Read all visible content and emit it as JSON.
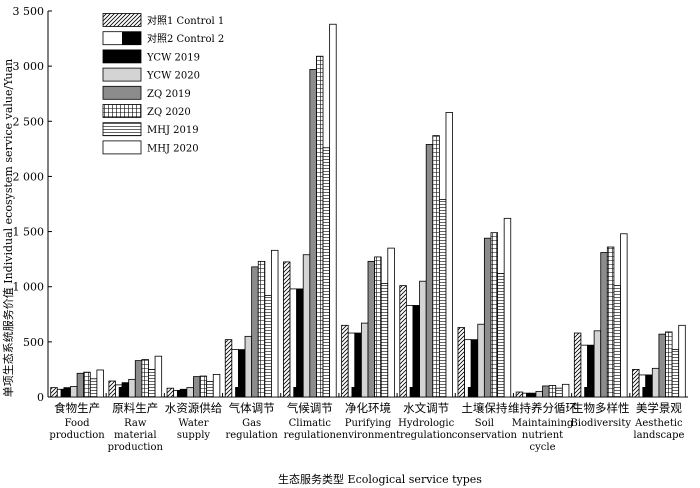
{
  "chart_data": {
    "type": "bar",
    "xlabel": "生态服务类型 Ecological service types",
    "ylabel": "单项生态系统服务价值 Individual ecosystem service value/Yuan",
    "ylim": [
      0,
      3500
    ],
    "yticks": [
      "0",
      "500",
      "1 000",
      "1 500",
      "2 000",
      "2 500",
      "3 000",
      "3 500"
    ],
    "ytick_values": [
      0,
      500,
      1000,
      1500,
      2000,
      2500,
      3000,
      3500
    ],
    "legend_position": "top-left",
    "categories": [
      {
        "zh": "食物生产",
        "en": [
          "Food",
          "production"
        ]
      },
      {
        "zh": "原料生产",
        "en": [
          "Raw",
          "material",
          "production"
        ]
      },
      {
        "zh": "水资源供给",
        "en": [
          "Water",
          "supply"
        ]
      },
      {
        "zh": "气体调节",
        "en": [
          "Gas",
          "regulation"
        ]
      },
      {
        "zh": "气候调节",
        "en": [
          "Climatic",
          "regulation"
        ]
      },
      {
        "zh": "净化环境",
        "en": [
          "Purifying",
          "environment"
        ]
      },
      {
        "zh": "水文调节",
        "en": [
          "Hydrologic",
          "regulation"
        ]
      },
      {
        "zh": "土壤保持",
        "en": [
          "Soil",
          "conservation"
        ]
      },
      {
        "zh": "维持养分循环",
        "en": [
          "Maintaining",
          "nutrient",
          "cycle"
        ]
      },
      {
        "zh": "生物多样性",
        "en": [
          "Biodiversity"
        ]
      },
      {
        "zh": "美学景观",
        "en": [
          "Aesthetic",
          "landscape"
        ]
      }
    ],
    "series": [
      {
        "name": "对照1 Control 1",
        "pattern": "diagonal",
        "values": [
          85,
          145,
          80,
          520,
          1225,
          650,
          1010,
          630,
          45,
          580,
          250
        ]
      },
      {
        "name": "对照2 Control 2",
        "pattern": "halfblack",
        "values": [
          70,
          110,
          60,
          430,
          980,
          580,
          830,
          520,
          35,
          470,
          200
        ]
      },
      {
        "name": "YCW 2019",
        "pattern": "black",
        "values": [
          85,
          130,
          70,
          430,
          980,
          580,
          830,
          520,
          35,
          470,
          200
        ]
      },
      {
        "name": "YCW 2020",
        "pattern": "lightgray",
        "values": [
          95,
          160,
          85,
          550,
          1290,
          670,
          1050,
          660,
          50,
          600,
          260
        ]
      },
      {
        "name": "ZQ 2019",
        "pattern": "darkgray",
        "values": [
          215,
          330,
          185,
          1180,
          2970,
          1230,
          2290,
          1440,
          100,
          1310,
          570
        ]
      },
      {
        "name": "ZQ 2020",
        "pattern": "grid",
        "values": [
          225,
          340,
          190,
          1230,
          3090,
          1270,
          2370,
          1490,
          105,
          1360,
          590
        ]
      },
      {
        "name": "MHJ 2019",
        "pattern": "horizontal",
        "values": [
          165,
          250,
          140,
          920,
          2260,
          1030,
          1790,
          1120,
          80,
          1010,
          430
        ]
      },
      {
        "name": "MHJ 2020",
        "pattern": "white",
        "values": [
          245,
          370,
          205,
          1330,
          3380,
          1350,
          2580,
          1620,
          115,
          1480,
          650
        ]
      }
    ]
  }
}
